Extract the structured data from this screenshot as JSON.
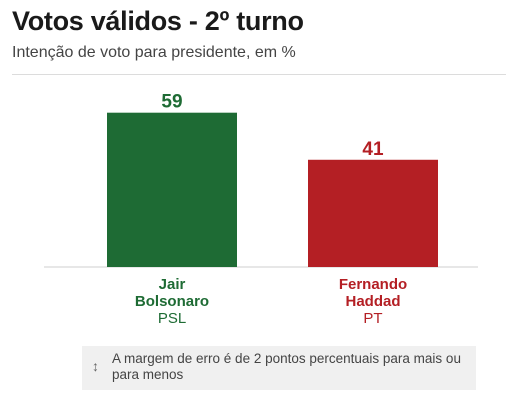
{
  "header": {
    "title": "Votos válidos - 2º turno",
    "subtitle": "Intenção de voto para presidente, em %"
  },
  "chart_data": {
    "type": "bar",
    "categories": [
      "Jair Bolsonaro",
      "Fernando Haddad"
    ],
    "values": [
      59,
      41
    ],
    "title": "Votos válidos - 2º turno",
    "subtitle": "Intenção de voto para presidente, em %",
    "xlabel": "",
    "ylabel": "",
    "ylim": [
      0,
      65
    ],
    "grid": false,
    "bars": [
      {
        "name_line1": "Jair",
        "name_line2": "Bolsonaro",
        "party": "PSL",
        "value": 59,
        "color": "#1e6b34"
      },
      {
        "name_line1": "Fernando",
        "name_line2": "Haddad",
        "party": "PT",
        "value": 41,
        "color": "#b41f24"
      }
    ]
  },
  "note": {
    "icon": "up-down-arrow-icon",
    "text": "A margem de erro é de 2 pontos percentuais para mais ou para menos"
  }
}
